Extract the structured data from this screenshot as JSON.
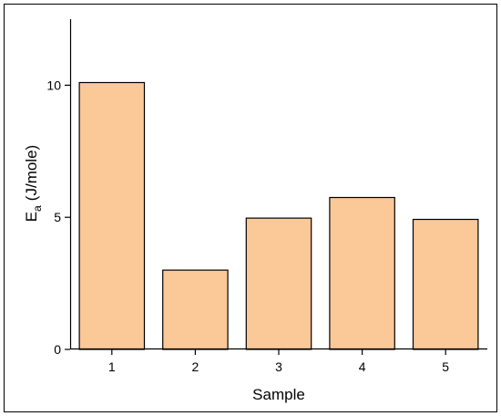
{
  "chart_data": {
    "type": "bar",
    "title": "",
    "xlabel": "Sample",
    "ylabel_main": "E",
    "ylabel_subscript": "a",
    "ylabel_units": "(J/mole)",
    "categories": [
      "1",
      "2",
      "3",
      "4",
      "5"
    ],
    "values": [
      10.1,
      3.0,
      4.97,
      5.75,
      4.92
    ],
    "ylim": [
      0,
      12.5
    ],
    "yticks": [
      0,
      5,
      10
    ],
    "ytick_labels": [
      "0",
      "5",
      "10"
    ],
    "grid": false,
    "legend": "none",
    "bar_fill": "#fbc898",
    "bar_edge": "#000000"
  }
}
